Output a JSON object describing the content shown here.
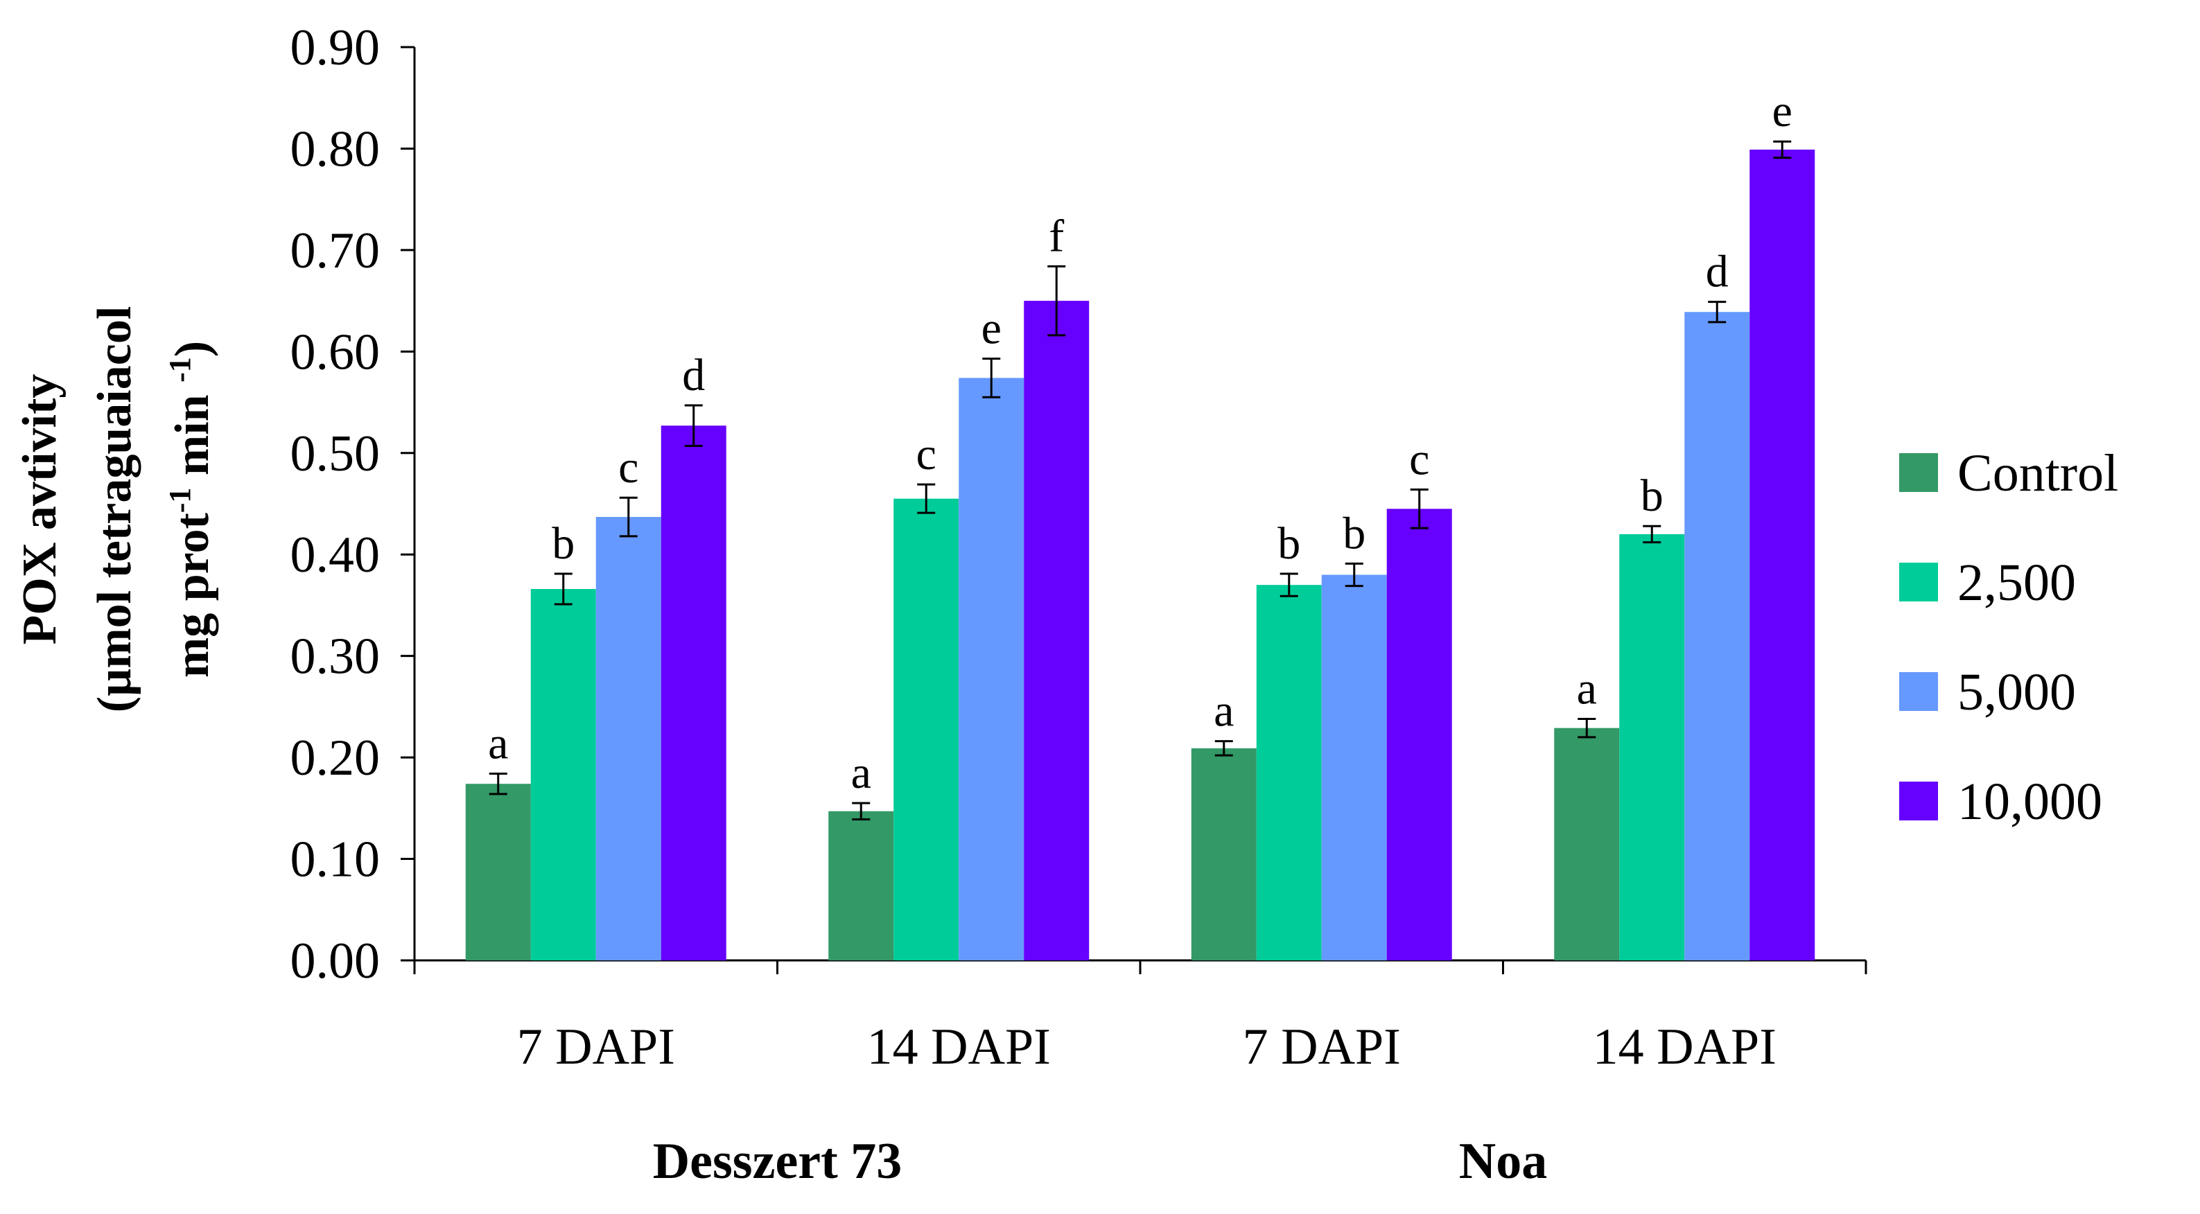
{
  "chart_data": {
    "type": "bar",
    "title": "",
    "ylabel": {
      "line1": "POX avtivity",
      "line2": "(µmol tetraguaiacol",
      "line3_pre": "mg prot",
      "line3_sup1": "-1",
      "line3_mid": " min ",
      "line3_sup2": "-1",
      "line3_post": ")"
    },
    "ylim": [
      0,
      0.9
    ],
    "yticks": [
      "0.00",
      "0.10",
      "0.20",
      "0.30",
      "0.40",
      "0.50",
      "0.60",
      "0.70",
      "0.80",
      "0.90"
    ],
    "categories": [
      "7 DAPI",
      "14 DAPI",
      "7 DAPI",
      "14 DAPI"
    ],
    "groups": [
      {
        "label": "Desszert 73",
        "span": [
          0,
          1
        ]
      },
      {
        "label": "Noa",
        "span": [
          2,
          3
        ]
      }
    ],
    "series": [
      {
        "name": "Control",
        "color": "#339966",
        "values": [
          0.174,
          0.147,
          0.209,
          0.229
        ],
        "errors": [
          0.01,
          0.008,
          0.007,
          0.009
        ],
        "letters": [
          "a",
          "a",
          "a",
          "a"
        ]
      },
      {
        "name": "2,500",
        "color": "#00cc99",
        "values": [
          0.366,
          0.455,
          0.37,
          0.42
        ],
        "errors": [
          0.015,
          0.014,
          0.011,
          0.008
        ],
        "letters": [
          "b",
          "c",
          "b",
          "b"
        ]
      },
      {
        "name": "5,000",
        "color": "#6699ff",
        "values": [
          0.437,
          0.574,
          0.38,
          0.639
        ],
        "errors": [
          0.019,
          0.019,
          0.011,
          0.01
        ],
        "letters": [
          "c",
          "e",
          "b",
          "d"
        ]
      },
      {
        "name": "10,000",
        "color": "#6600ff",
        "values": [
          0.527,
          0.65,
          0.445,
          0.799
        ],
        "errors": [
          0.02,
          0.034,
          0.019,
          0.008
        ],
        "letters": [
          "d",
          "f",
          "c",
          "e"
        ]
      }
    ],
    "legend_position": "right",
    "grid": false
  }
}
